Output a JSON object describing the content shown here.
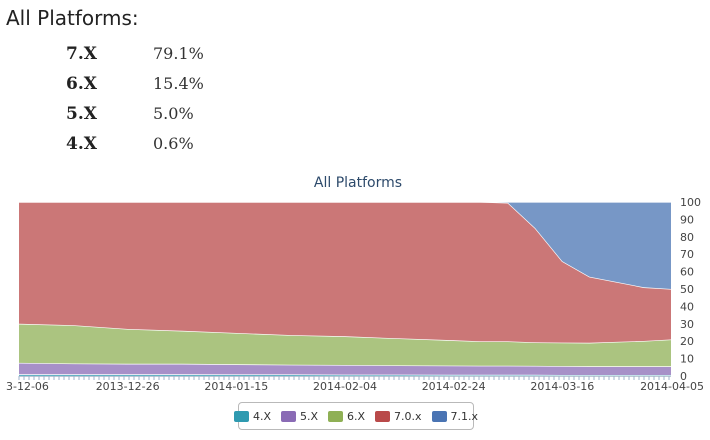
{
  "heading": "All Platforms:",
  "versions": [
    {
      "name": "7.X",
      "share": "79.1%"
    },
    {
      "name": "6.X",
      "share": "15.4%"
    },
    {
      "name": "5.X",
      "share": "5.0%"
    },
    {
      "name": "4.X",
      "share": "0.6%"
    }
  ],
  "chart_data": {
    "type": "area",
    "stacked": true,
    "title": "All Platforms",
    "xlabel": "",
    "ylabel": "",
    "x_ticks": [
      "3-12-06",
      "2013-12-26",
      "2014-01-15",
      "2014-02-04",
      "2014-02-24",
      "2014-03-16",
      "2014-04-05"
    ],
    "x": [
      "2013-12-06",
      "2013-12-16",
      "2013-12-26",
      "2014-01-05",
      "2014-01-15",
      "2014-01-25",
      "2014-02-04",
      "2014-02-14",
      "2014-02-24",
      "2014-03-01",
      "2014-03-06",
      "2014-03-11",
      "2014-03-16",
      "2014-03-21",
      "2014-03-26",
      "2014-03-31",
      "2014-04-05"
    ],
    "y_ticks": [
      0,
      10,
      20,
      30,
      40,
      50,
      60,
      70,
      80,
      90,
      100
    ],
    "ylim": [
      0,
      100
    ],
    "grid": false,
    "legend_position": "bottom",
    "series": [
      {
        "name": "4.X",
        "color": "#2f9ab0",
        "values": [
          1.0,
          1.0,
          1.0,
          1.0,
          0.9,
          0.9,
          0.8,
          0.8,
          0.7,
          0.7,
          0.7,
          0.7,
          0.6,
          0.6,
          0.6,
          0.6,
          0.6
        ]
      },
      {
        "name": "5.X",
        "color": "#8a6bb5",
        "values": [
          6.5,
          6.2,
          6.0,
          6.0,
          5.8,
          5.6,
          5.5,
          5.3,
          5.3,
          5.2,
          5.2,
          5.1,
          5.1,
          5.0,
          5.0,
          5.0,
          5.0
        ]
      },
      {
        "name": "6.X",
        "color": "#8fb055",
        "values": [
          22.5,
          22.0,
          20.0,
          19.0,
          18.0,
          17.0,
          16.5,
          15.5,
          14.5,
          14.0,
          14.0,
          13.5,
          13.5,
          13.5,
          14.0,
          14.5,
          15.4
        ]
      },
      {
        "name": "7.0.x",
        "color": "#b94a4a",
        "values": [
          70.0,
          70.8,
          73.0,
          74.0,
          75.3,
          76.5,
          77.2,
          78.4,
          79.5,
          80.1,
          79.6,
          65.7,
          46.8,
          37.9,
          34.4,
          30.9,
          29.0
        ]
      },
      {
        "name": "7.1.x",
        "color": "#4a74b3",
        "values": [
          0,
          0,
          0,
          0,
          0,
          0,
          0,
          0,
          0,
          0,
          0.5,
          15.0,
          34.0,
          43.0,
          46.0,
          49.0,
          50.0
        ]
      }
    ]
  }
}
